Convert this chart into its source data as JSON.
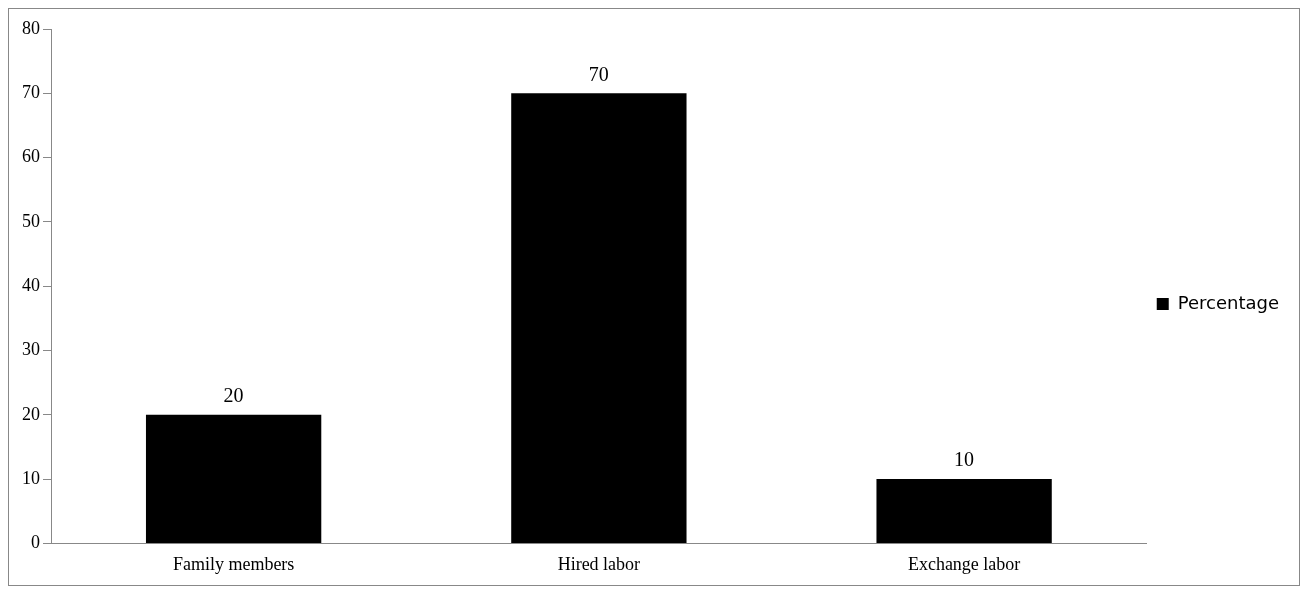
{
  "chart_data": {
    "type": "bar",
    "categories": [
      "Family members",
      "Hired labor",
      "Exchange labor"
    ],
    "series": [
      {
        "name": "Percentage",
        "color": "#000000",
        "values": [
          20,
          70,
          10
        ]
      }
    ],
    "ylim": [
      0,
      80
    ],
    "yticks": [
      0,
      10,
      20,
      30,
      40,
      50,
      60,
      70,
      80
    ],
    "grid": false,
    "legend": "right",
    "data_labels": true
  }
}
